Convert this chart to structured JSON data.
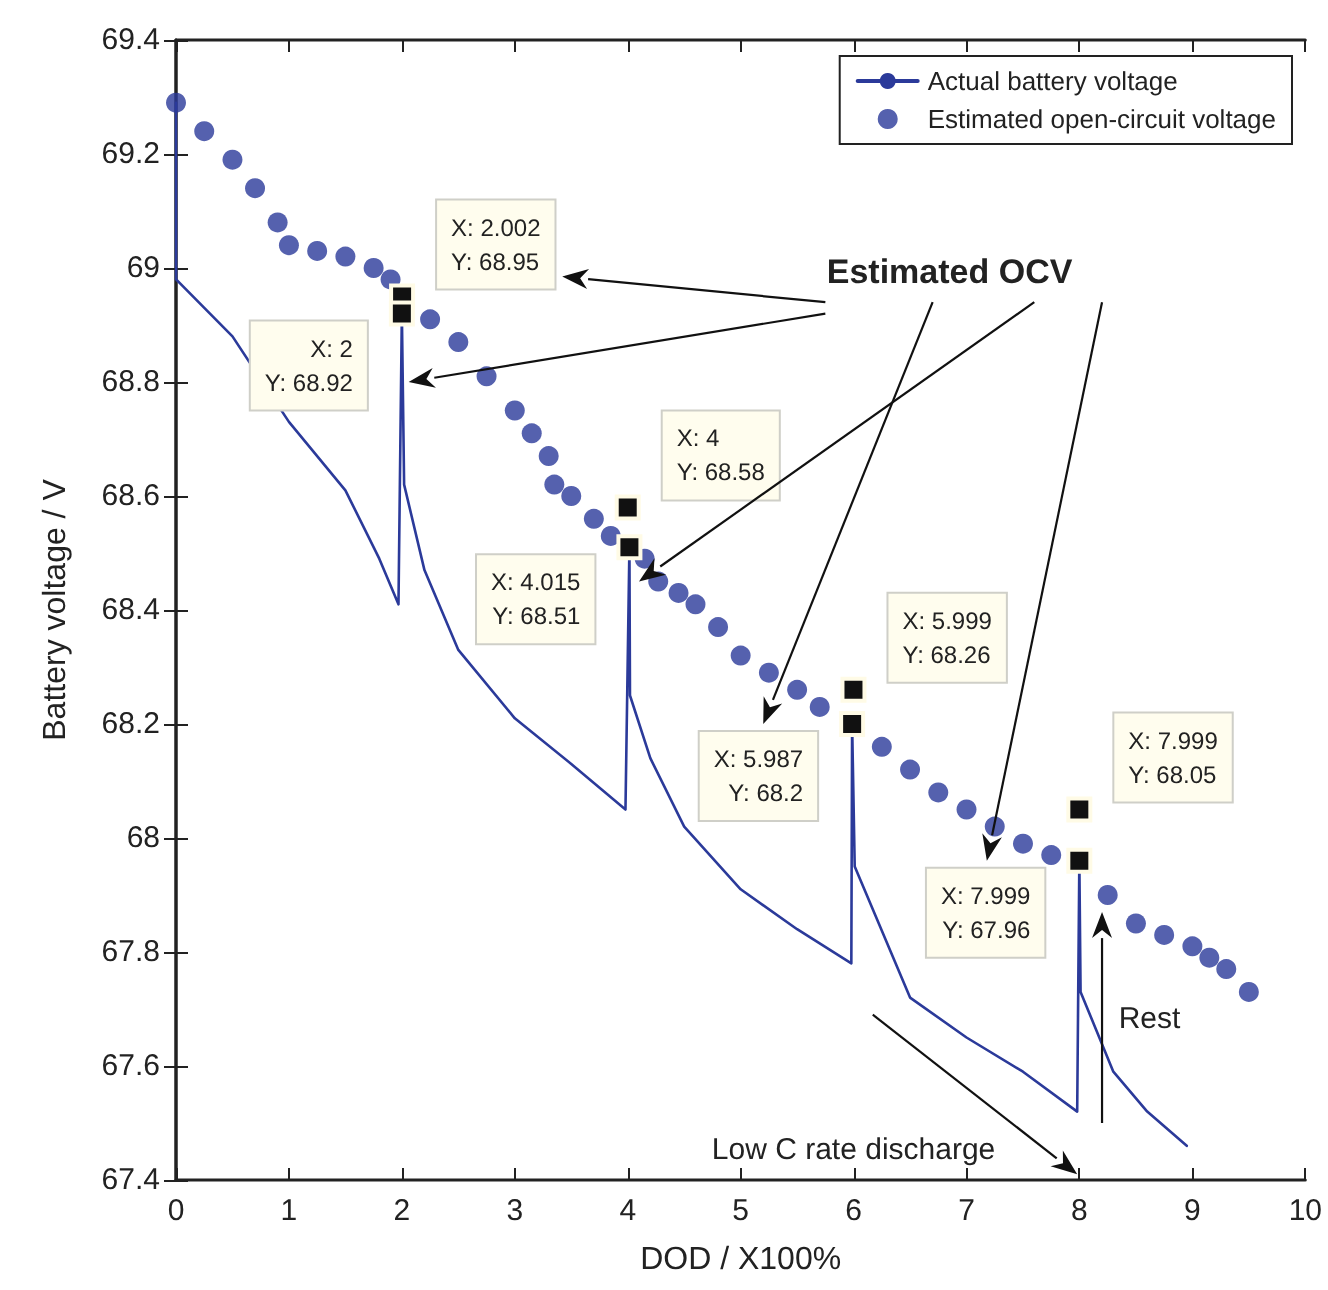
{
  "chart_data": {
    "type": "line",
    "xlabel": "DOD / X100%",
    "ylabel": "Battery voltage / V",
    "xlim": [
      0,
      10
    ],
    "xticks": [
      0,
      1,
      2,
      3,
      4,
      5,
      6,
      7,
      8,
      9,
      10
    ],
    "ylim": [
      67.4,
      69.4
    ],
    "yticks": [
      67.4,
      67.6,
      67.8,
      68,
      68.2,
      68.4,
      68.6,
      68.8,
      69,
      69.2,
      69.4
    ],
    "grid": false,
    "legend": "top right",
    "series": [
      {
        "name": "Actual battery voltage",
        "color": "#2b3a9a",
        "marker": "none",
        "line_style": "solid",
        "x": [
          0,
          0.001,
          0.5,
          1,
          1.5,
          1.8,
          1.97,
          2,
          2.02,
          2.2,
          2.5,
          3,
          3.5,
          3.98,
          4.015,
          4.02,
          4.2,
          4.5,
          5,
          5.5,
          5.98,
          5.987,
          6.01,
          6.5,
          7,
          7.5,
          7.98,
          7.999,
          8.01,
          8.3,
          8.6,
          8.95
        ],
        "values": [
          69.29,
          68.98,
          68.88,
          68.73,
          68.61,
          68.49,
          68.41,
          68.92,
          68.62,
          68.47,
          68.33,
          68.21,
          68.13,
          68.05,
          68.51,
          68.25,
          68.14,
          68.02,
          67.91,
          67.84,
          67.78,
          68.2,
          67.95,
          67.72,
          67.65,
          67.59,
          67.52,
          67.96,
          67.73,
          67.59,
          67.52,
          67.46
        ]
      },
      {
        "name": "Estimated open-circuit voltage",
        "type": "scatter",
        "color": "#2b3a9a",
        "marker": "circle",
        "x": [
          0,
          0.25,
          0.5,
          0.7,
          0.9,
          1,
          1.25,
          1.5,
          1.75,
          1.9,
          2.002,
          2.25,
          2.5,
          2.75,
          3,
          3.15,
          3.3,
          3.35,
          3.5,
          3.7,
          3.85,
          4.15,
          4.27,
          4.45,
          4.6,
          4.8,
          5,
          5.25,
          5.5,
          5.7,
          6.25,
          6.5,
          6.75,
          7,
          7.25,
          7.5,
          7.75,
          8.25,
          8.5,
          8.75,
          9,
          9.15,
          9.3,
          9.5
        ],
        "values": [
          69.29,
          69.24,
          69.19,
          69.14,
          69.08,
          69.04,
          69.03,
          69.02,
          69.0,
          68.98,
          68.95,
          68.91,
          68.87,
          68.81,
          68.75,
          68.71,
          68.67,
          68.62,
          68.6,
          68.56,
          68.53,
          68.49,
          68.45,
          68.43,
          68.41,
          68.37,
          68.32,
          68.29,
          68.26,
          68.23,
          68.16,
          68.12,
          68.08,
          68.05,
          68.02,
          67.99,
          67.97,
          67.9,
          67.85,
          67.83,
          67.81,
          67.79,
          67.77,
          67.73
        ]
      }
    ],
    "annotations": [
      {
        "text": "X: 2.002\nY: 68.95",
        "x": 2.002,
        "y": 68.95
      },
      {
        "text": "X: 2\nY: 68.92",
        "x": 2,
        "y": 68.92
      },
      {
        "text": "X: 4\nY: 68.58",
        "x": 4,
        "y": 68.58
      },
      {
        "text": "X: 4.015\nY: 68.51",
        "x": 4.015,
        "y": 68.51
      },
      {
        "text": "X: 5.999\nY: 68.26",
        "x": 5.999,
        "y": 68.26
      },
      {
        "text": "X: 5.987\nY: 68.2",
        "x": 5.987,
        "y": 68.2
      },
      {
        "text": "X: 7.999\nY: 68.05",
        "x": 7.999,
        "y": 68.05
      },
      {
        "text": "X: 7.999\nY: 67.96",
        "x": 7.999,
        "y": 67.96
      },
      "Estimated OCV",
      "Low C rate discharge",
      "Rest"
    ]
  }
}
